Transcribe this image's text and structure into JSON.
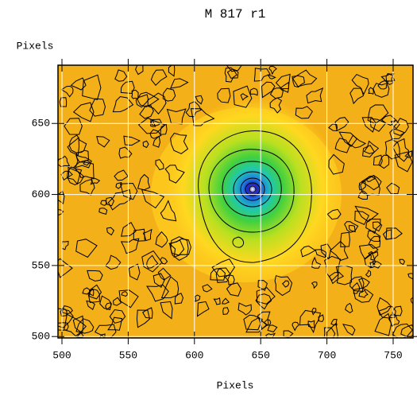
{
  "chart_data": {
    "type": "contour",
    "title": "M 817 r1",
    "x_label": "Pixels",
    "y_label": "Pixels",
    "xlim": [
      497,
      765
    ],
    "xticks": [
      500,
      550,
      600,
      650,
      700,
      750
    ],
    "ylim": [
      499,
      691
    ],
    "yticks": [
      500,
      550,
      600,
      650
    ],
    "grid": true
  }
}
